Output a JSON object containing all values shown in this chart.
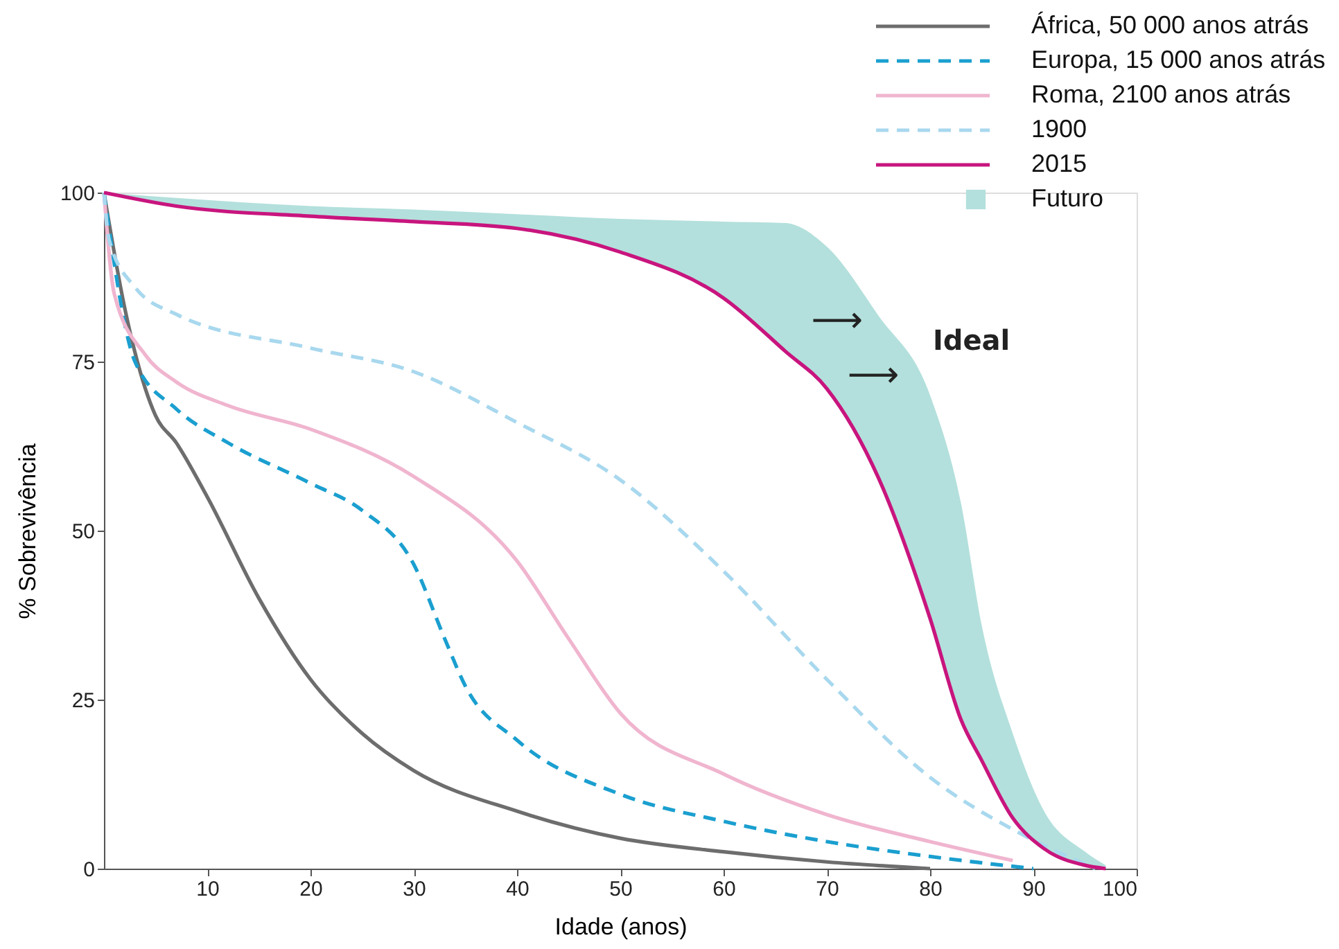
{
  "chart_data": {
    "type": "line",
    "xlabel": "Idade (anos)",
    "ylabel": "% Sobrevivência",
    "xlim": [
      0,
      100
    ],
    "xticks": [
      10,
      20,
      30,
      40,
      50,
      60,
      70,
      80,
      90,
      100
    ],
    "ylim": [
      0,
      100
    ],
    "yticks": [
      0,
      25,
      50,
      75,
      100
    ],
    "grid": false,
    "legend": "top right",
    "marker": "none",
    "annotations": [
      "Ideal",
      "⟶",
      "⟶"
    ],
    "series": [
      {
        "name": "África, 50 000 anos atrás",
        "color": "#6d6d6d",
        "line_style": "solid",
        "x": [
          0,
          2,
          5,
          7,
          10,
          15,
          20,
          25,
          30,
          40,
          50,
          60,
          70,
          80
        ],
        "values": [
          100,
          83,
          67,
          63,
          55,
          40,
          28,
          20,
          14.5,
          8.5,
          4.5,
          2.5,
          1,
          0
        ]
      },
      {
        "name": "Europa, 15 000 anos atrás",
        "color": "#1a9fcf",
        "line_style": "dashed",
        "x": [
          0,
          3,
          7,
          12,
          20,
          25,
          30,
          33,
          35,
          40,
          50,
          60,
          70,
          80,
          90
        ],
        "values": [
          100,
          75,
          68,
          63,
          57,
          53,
          45,
          34,
          27,
          19,
          11,
          7,
          4,
          1.8,
          0
        ]
      },
      {
        "name": "Roma, 2100 anos atrás",
        "color": "#f0b5cf",
        "line_style": "solid",
        "x": [
          0,
          1,
          4,
          7,
          12,
          20,
          30,
          40,
          45,
          50,
          60,
          70,
          80,
          88
        ],
        "values": [
          100,
          85,
          76,
          72,
          68.5,
          65,
          58,
          45.5,
          34,
          23,
          14,
          8,
          4,
          1.2
        ]
      },
      {
        "name": "1900",
        "color": "#a8d8ee",
        "line_style": "dashed",
        "x": [
          0,
          0.5,
          3,
          7,
          20,
          30,
          40,
          50,
          60,
          70,
          80,
          89,
          96
        ],
        "values": [
          100,
          93,
          86,
          82,
          77,
          73.5,
          66,
          57.5,
          44,
          28,
          13.5,
          5,
          0
        ]
      },
      {
        "name": "2015",
        "color": "#c8157e",
        "line_style": "solid",
        "x": [
          0,
          7,
          20,
          30,
          40,
          50,
          60,
          66,
          70,
          75,
          80,
          83,
          85,
          88,
          91,
          95,
          97
        ],
        "values": [
          100,
          98,
          96.5,
          95.7,
          94.7,
          91.2,
          84.4,
          76.5,
          71,
          57.8,
          37,
          22,
          16,
          7.5,
          3,
          0.5,
          0
        ],
        "lower": [
          100,
          98,
          96.5,
          95.7,
          94.7,
          91.2,
          84.4,
          76.5,
          71,
          57.8,
          37,
          22,
          16,
          7.5,
          3,
          0.5,
          0
        ],
        "upper": [
          100,
          99.2,
          98,
          97.5,
          96.8,
          96.1,
          95.7,
          95.5,
          92,
          81.8,
          70,
          54,
          36,
          20,
          8.6,
          2.5,
          0.5
        ]
      },
      {
        "name": "Futuro",
        "type": "area",
        "color": "#b3e0dc"
      }
    ]
  }
}
